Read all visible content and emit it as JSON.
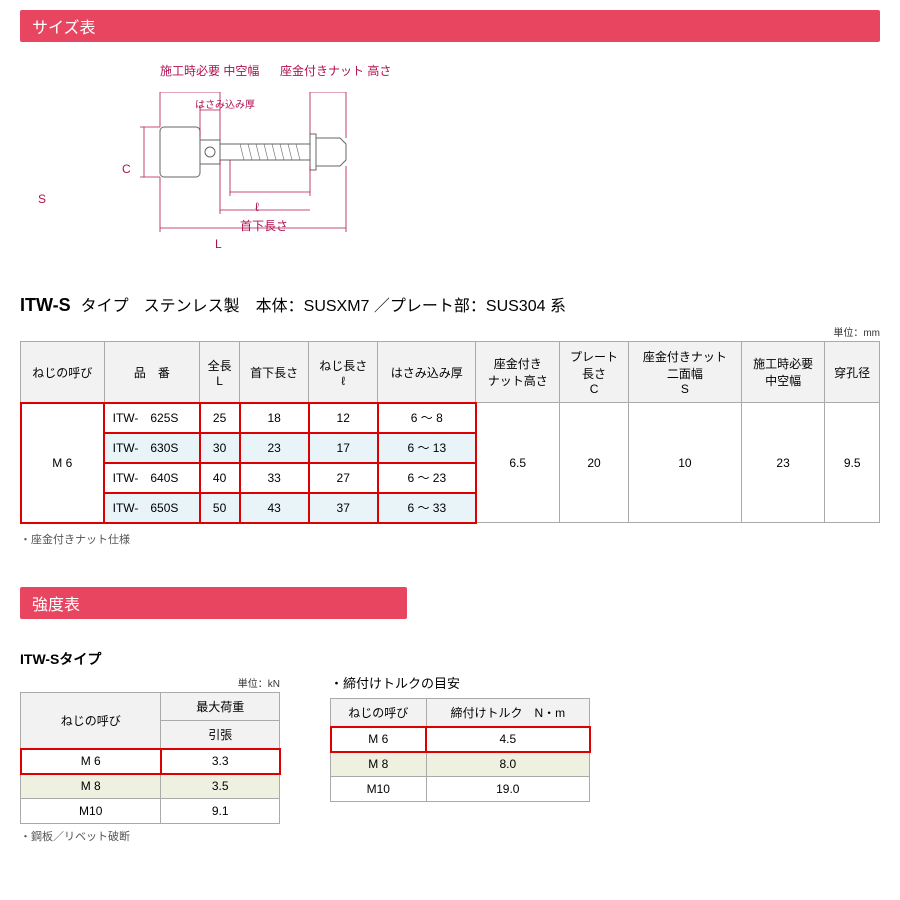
{
  "section1": {
    "header": "サイズ表"
  },
  "diagram": {
    "labels": {
      "l1": "施工時必要\n中空幅",
      "l2": "座金付きナット\n高さ",
      "l3": "はさみ込み厚",
      "l4": "首下長さ",
      "ls": "S",
      "lc": "C",
      "ll": "ℓ",
      "lL": "L"
    },
    "stroke": "#b01050"
  },
  "title": {
    "main": "ITW-S",
    "sub1": "タイプ",
    "sub2": "ステンレス製　本体：SUSXM7 ／プレート部：SUS304 系"
  },
  "unit1": "単位：mm",
  "table1": {
    "headers": [
      "ねじの呼び",
      "品　番",
      "全長\nL",
      "首下長さ",
      "ねじ長さ\nℓ",
      "はさみ込み厚",
      "座金付き\nナット高さ",
      "プレート\n長さ\nC",
      "座金付きナット\n二面幅\nS",
      "施工時必要\n中空幅",
      "穿孔径"
    ],
    "thread": "M 6",
    "rows": [
      {
        "pn": "ITW-　625S",
        "L": "25",
        "under": "18",
        "thread_len": "12",
        "clamp": "6 ～  8"
      },
      {
        "pn": "ITW-　630S",
        "L": "30",
        "under": "23",
        "thread_len": "17",
        "clamp": "6 ～ 13"
      },
      {
        "pn": "ITW-　640S",
        "L": "40",
        "under": "33",
        "thread_len": "27",
        "clamp": "6 ～ 23"
      },
      {
        "pn": "ITW-　650S",
        "L": "50",
        "under": "43",
        "thread_len": "37",
        "clamp": "6 ～ 33"
      }
    ],
    "shared": {
      "nut_h": "6.5",
      "plate": "20",
      "flats": "10",
      "hollow": "23",
      "hole": "9.5"
    },
    "note": "・座金付きナット仕様"
  },
  "section2": {
    "header": "強度表",
    "sub": "ITW-Sタイプ",
    "unit": "単位：kN",
    "torque": "・締付けトルクの目安"
  },
  "table2a": {
    "h1": "ねじの呼び",
    "h2": "最大荷重",
    "h3": "引張",
    "rows": [
      {
        "t": "M 6",
        "v": "3.3",
        "hl": true
      },
      {
        "t": "M 8",
        "v": "3.5",
        "green": true
      },
      {
        "t": "M10",
        "v": "9.1"
      }
    ],
    "note": "・鋼板／リベット破断"
  },
  "table2b": {
    "h1": "ねじの呼び",
    "h2": "締付けトルク　N・m",
    "rows": [
      {
        "t": "M 6",
        "v": "4.5",
        "hl": true
      },
      {
        "t": "M 8",
        "v": "8.0",
        "green": true
      },
      {
        "t": "M10",
        "v": "19.0"
      }
    ]
  }
}
